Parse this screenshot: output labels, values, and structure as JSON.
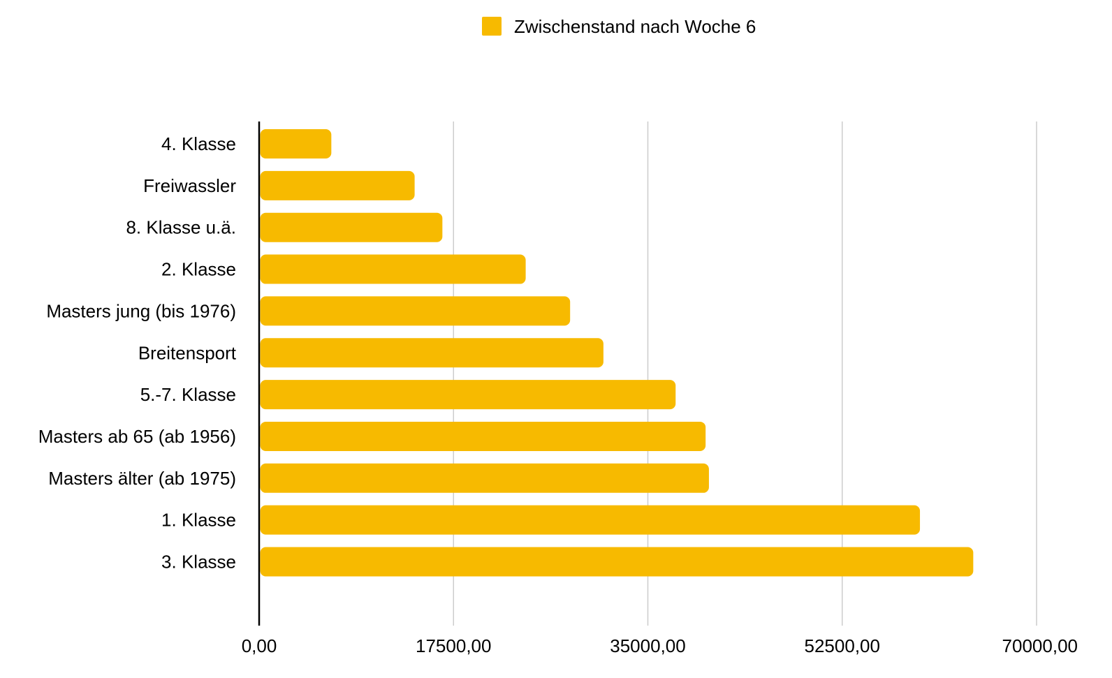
{
  "chart_data": {
    "type": "bar",
    "orientation": "horizontal",
    "categories": [
      "4. Klasse",
      "Freiwassler",
      "8. Klasse u.ä.",
      "2. Klasse",
      "Masters jung (bis 1976)",
      "Breitensport",
      "5.-7. Klasse",
      "Masters ab 65 (ab 1956)",
      "Masters älter (ab 1975)",
      "1. Klasse",
      "3. Klasse"
    ],
    "series": [
      {
        "name": "Zwischenstand nach Woche 6",
        "color": "#F7BA00",
        "values": [
          6500,
          14000,
          16500,
          24000,
          28000,
          31000,
          37500,
          40200,
          40500,
          59500,
          64300
        ]
      }
    ],
    "xlim": [
      0,
      70000
    ],
    "x_ticks": [
      0,
      17500,
      35000,
      52500,
      70000
    ],
    "x_tick_labels": [
      "0,00",
      "17500,00",
      "35000,00",
      "52500,00",
      "70000,00"
    ],
    "grid": "vertical",
    "legend_position": "top",
    "colors": {
      "bar": "#F7BA00",
      "grid": "#cccccc",
      "axis": "#000000",
      "text": "#000000"
    }
  }
}
